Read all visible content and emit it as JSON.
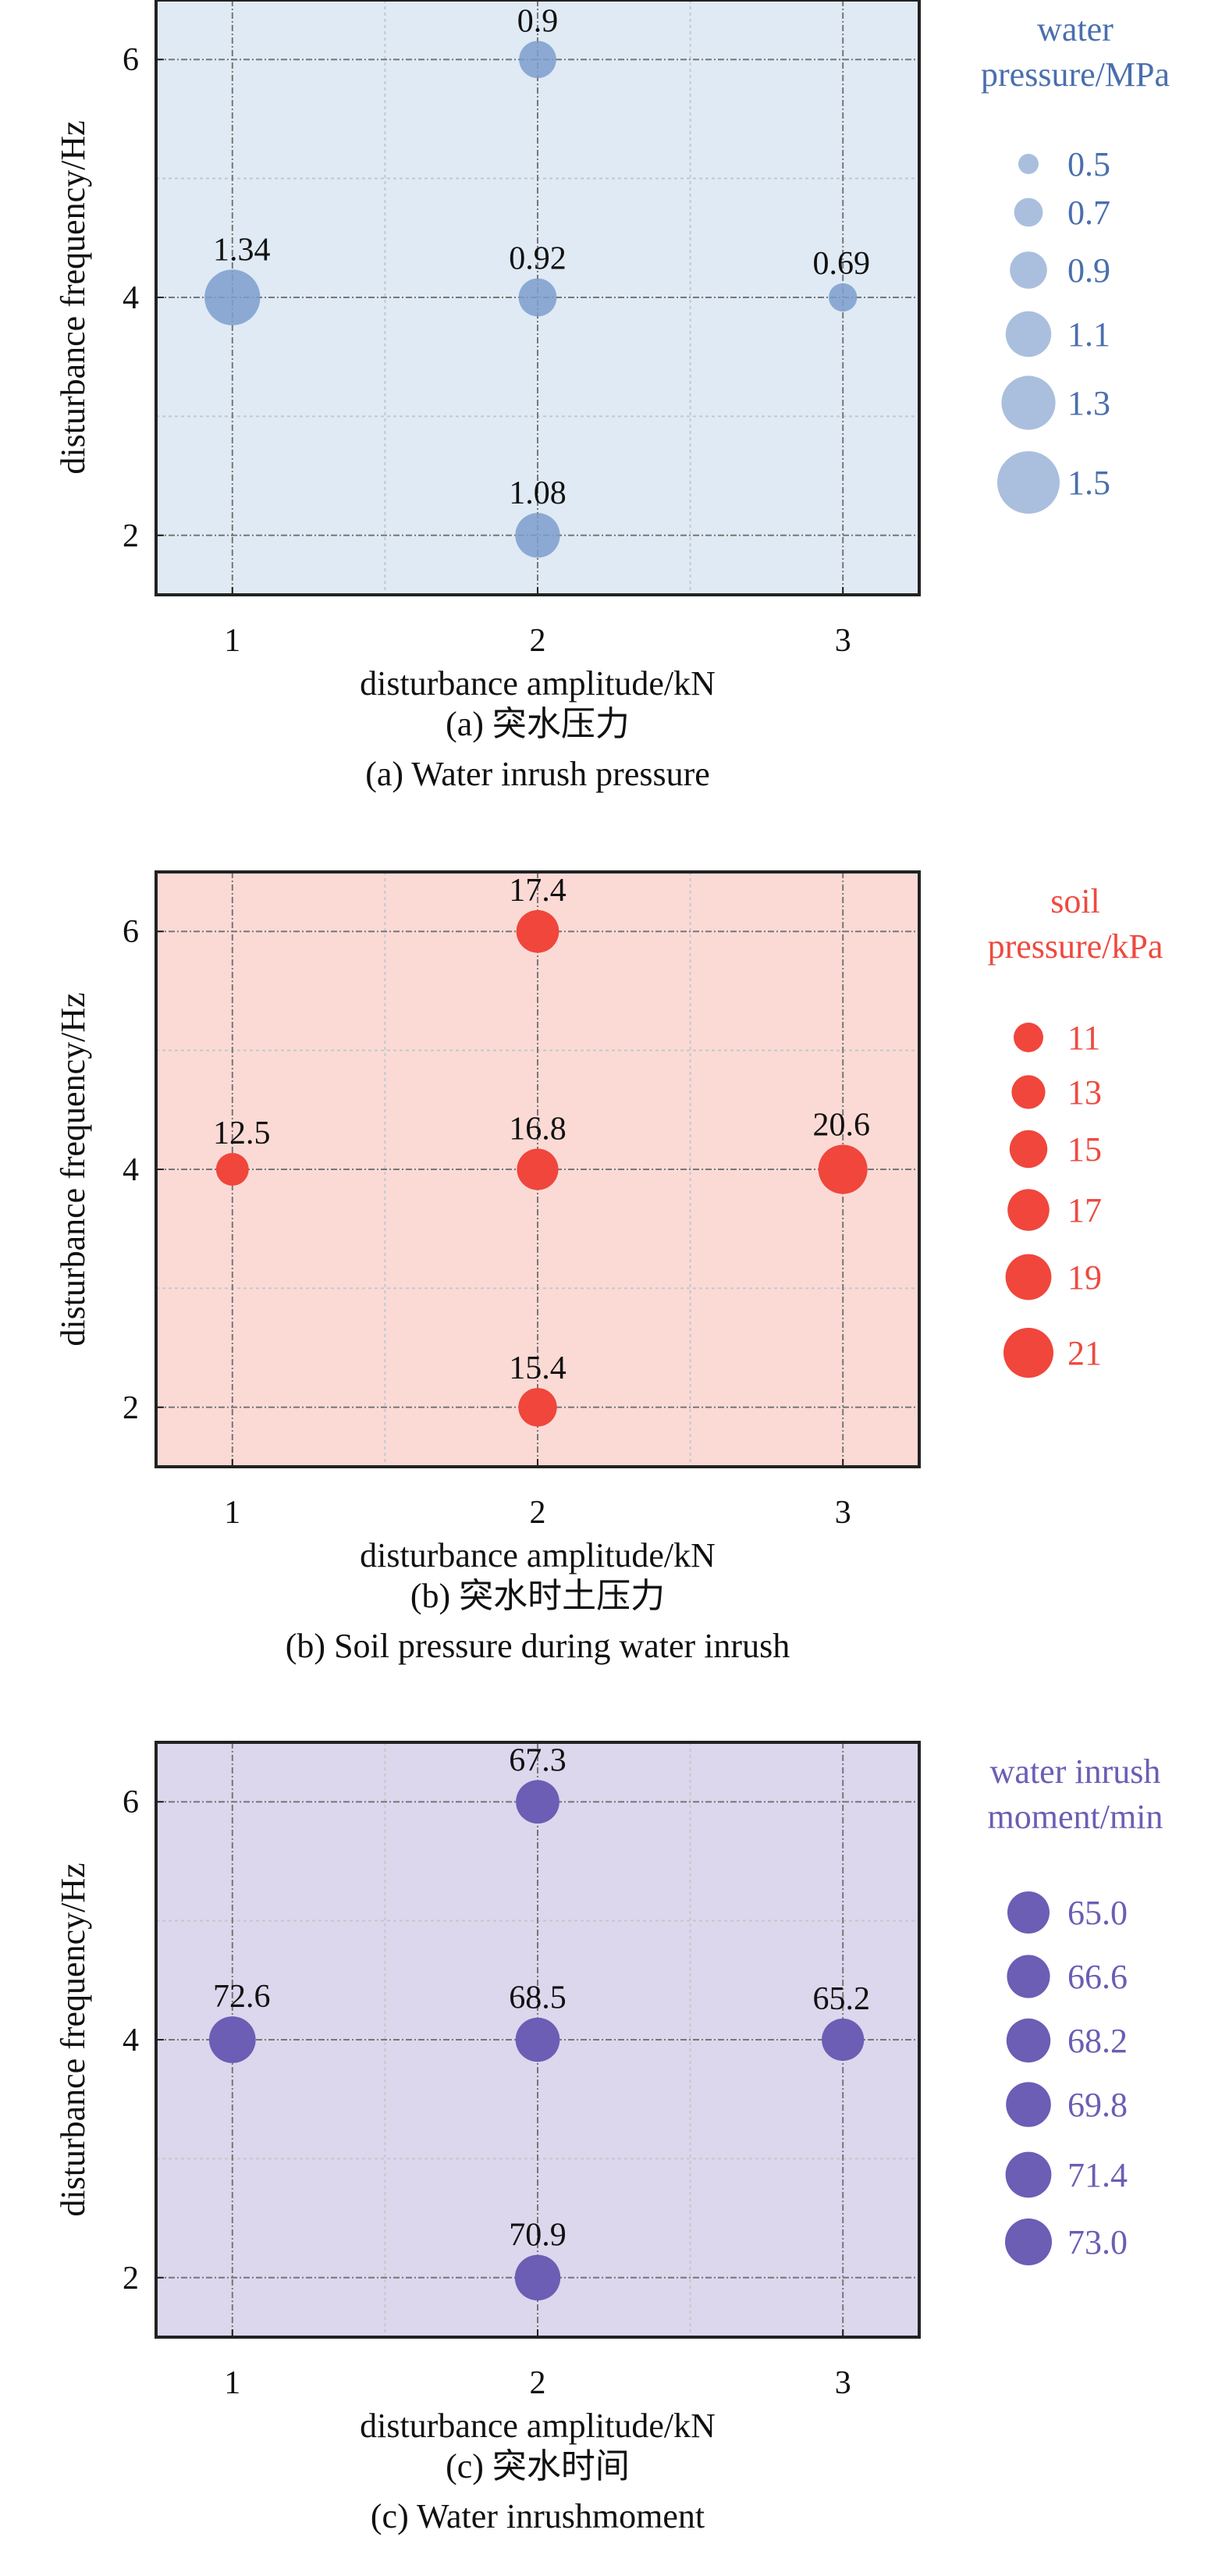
{
  "chart_data": [
    {
      "type": "scatter",
      "subtype": "bubble",
      "xlabel": "disturbance amplitude/kN",
      "ylabel": "disturbance frequency/Hz",
      "caption_cn": "(a) 突水压力",
      "caption_en": "(a) Water inrush pressure",
      "xlim": [
        0.75,
        3.25
      ],
      "ylim": [
        1.5,
        6.5
      ],
      "xticks": [
        1,
        2,
        3
      ],
      "yticks": [
        2,
        4,
        6
      ],
      "grid": true,
      "background": "#dfeaf4",
      "marker_color": "#7c9dcc",
      "legend_color": "#4a6fae",
      "legend_title": [
        "water",
        "pressure/MPa"
      ],
      "legend_placement": "right",
      "legend_values": [
        "0.5",
        "0.7",
        "0.9",
        "1.1",
        "1.3",
        "1.5"
      ],
      "size_range": [
        0.5,
        1.5
      ],
      "points": [
        {
          "x": 2,
          "y": 6,
          "value": 0.9,
          "label": "0.9"
        },
        {
          "x": 1,
          "y": 4,
          "value": 1.34,
          "label": "1.34"
        },
        {
          "x": 2,
          "y": 4,
          "value": 0.92,
          "label": "0.92"
        },
        {
          "x": 3,
          "y": 4,
          "value": 0.69,
          "label": "0.69"
        },
        {
          "x": 2,
          "y": 2,
          "value": 1.08,
          "label": "1.08"
        }
      ]
    },
    {
      "type": "scatter",
      "subtype": "bubble",
      "xlabel": "disturbance amplitude/kN",
      "ylabel": "disturbance frequency/Hz",
      "caption_cn": "(b) 突水时土压力",
      "caption_en": "(b) Soil pressure during water inrush",
      "xlim": [
        0.75,
        3.25
      ],
      "ylim": [
        1.5,
        6.5
      ],
      "xticks": [
        1,
        2,
        3
      ],
      "yticks": [
        2,
        4,
        6
      ],
      "grid": true,
      "background": "#fbdad5",
      "marker_color": "#f0463c",
      "legend_color": "#ee4a40",
      "legend_title": [
        "soil",
        "pressure/kPa"
      ],
      "legend_placement": "right",
      "legend_values": [
        "11",
        "13",
        "15",
        "17",
        "19",
        "21"
      ],
      "size_range": [
        11,
        21
      ],
      "points": [
        {
          "x": 2,
          "y": 6,
          "value": 17.4,
          "label": "17.4"
        },
        {
          "x": 1,
          "y": 4,
          "value": 12.5,
          "label": "12.5"
        },
        {
          "x": 2,
          "y": 4,
          "value": 16.8,
          "label": "16.8"
        },
        {
          "x": 3,
          "y": 4,
          "value": 20.6,
          "label": "20.6"
        },
        {
          "x": 2,
          "y": 2,
          "value": 15.4,
          "label": "15.4"
        }
      ]
    },
    {
      "type": "scatter",
      "subtype": "bubble",
      "xlabel": "disturbance amplitude/kN",
      "ylabel": "disturbance frequency/Hz",
      "caption_cn": "(c) 突水时间",
      "caption_en": "(c) Water inrushmoment",
      "xlim": [
        0.75,
        3.25
      ],
      "ylim": [
        1.5,
        6.5
      ],
      "xticks": [
        1,
        2,
        3
      ],
      "yticks": [
        2,
        4,
        6
      ],
      "grid": true,
      "background": "#dcd7ec",
      "marker_color": "#6c5db5",
      "legend_color": "#6c5db5",
      "legend_title": [
        "water inrush",
        "moment/min"
      ],
      "legend_placement": "right",
      "legend_values": [
        "65.0",
        "66.6",
        "68.2",
        "69.8",
        "71.4",
        "73.0"
      ],
      "size_range": [
        65.0,
        73.0
      ],
      "points": [
        {
          "x": 2,
          "y": 6,
          "value": 67.3,
          "label": "67.3"
        },
        {
          "x": 1,
          "y": 4,
          "value": 72.6,
          "label": "72.6"
        },
        {
          "x": 2,
          "y": 4,
          "value": 68.5,
          "label": "68.5"
        },
        {
          "x": 3,
          "y": 4,
          "value": 65.2,
          "label": "65.2"
        },
        {
          "x": 2,
          "y": 2,
          "value": 70.9,
          "label": "70.9"
        }
      ]
    }
  ]
}
